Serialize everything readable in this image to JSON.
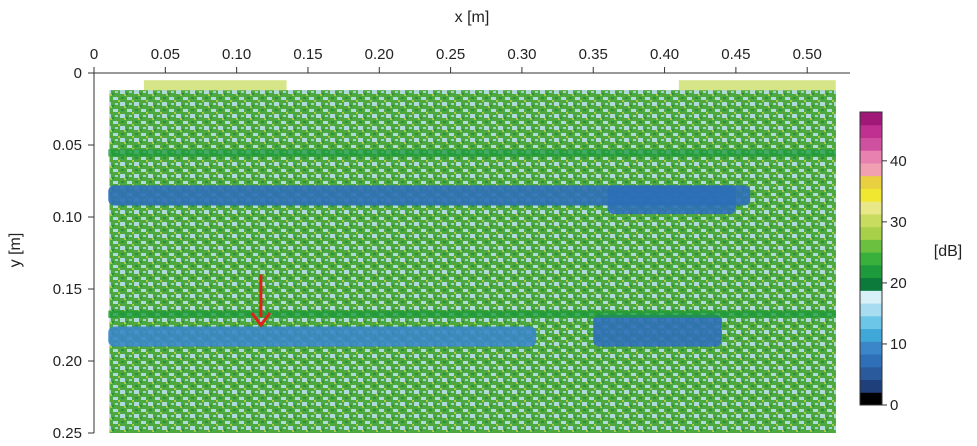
{
  "chart_data": {
    "type": "heatmap",
    "title": "",
    "xlabel": "x [m]",
    "ylabel": "y [m]",
    "xlim": [
      0,
      0.53
    ],
    "ylim": [
      0.25,
      0
    ],
    "x_ticks": [
      "0",
      "0.05",
      "0.10",
      "0.15",
      "0.20",
      "0.25",
      "0.30",
      "0.35",
      "0.40",
      "0.45",
      "0.50"
    ],
    "x_tick_values": [
      0,
      0.05,
      0.1,
      0.15,
      0.2,
      0.25,
      0.3,
      0.35,
      0.4,
      0.45,
      0.5
    ],
    "y_ticks": [
      "0",
      "0.05",
      "0.10",
      "0.15",
      "0.20",
      "0.25"
    ],
    "y_tick_values": [
      0,
      0.05,
      0.1,
      0.15,
      0.2,
      0.25
    ],
    "x_axis_position": "top",
    "colorbar": {
      "label": "[dB]",
      "min": 0,
      "max": 48,
      "ticks": [
        "0",
        "10",
        "20",
        "30",
        "40"
      ],
      "tick_values": [
        0,
        10,
        20,
        30,
        40
      ],
      "colors": [
        "#000000",
        "#1f3f7a",
        "#2a5a9c",
        "#2e6fb8",
        "#3a86c8",
        "#40a8d8",
        "#6cc6e8",
        "#a8dcf0",
        "#d8f0f8",
        "#0b7a3a",
        "#1c9a3c",
        "#3ab03c",
        "#6cc040",
        "#a8d048",
        "#c8dc60",
        "#e8e888",
        "#f0e830",
        "#e8d040",
        "#f0a0b0",
        "#e880b0",
        "#d050a0",
        "#c03090",
        "#a01878"
      ]
    },
    "scan_region": {
      "x": [
        0.011,
        0.52
      ],
      "y": [
        0.012,
        0.25
      ],
      "background_level_db": 20
    },
    "features": [
      {
        "name": "upper blue band",
        "x": [
          0.01,
          0.46
        ],
        "y": [
          0.078,
          0.092
        ],
        "level_db": 8
      },
      {
        "name": "upper right blue patch",
        "x": [
          0.36,
          0.45
        ],
        "y": [
          0.078,
          0.098
        ],
        "level_db": 7
      },
      {
        "name": "lower blue band",
        "x": [
          0.01,
          0.31
        ],
        "y": [
          0.176,
          0.19
        ],
        "level_db": 10
      },
      {
        "name": "lower right blue patch",
        "x": [
          0.35,
          0.44
        ],
        "y": [
          0.168,
          0.19
        ],
        "level_db": 7
      },
      {
        "name": "green stripe",
        "x": [
          0.01,
          0.52
        ],
        "y": [
          0.053,
          0.058
        ],
        "level_db": 22
      },
      {
        "name": "green stripe",
        "x": [
          0.01,
          0.52
        ],
        "y": [
          0.165,
          0.17
        ],
        "level_db": 22
      },
      {
        "name": "top edge",
        "x": [
          0.035,
          0.135
        ],
        "y": [
          0.005,
          0.012
        ],
        "level_db": 30
      },
      {
        "name": "top edge",
        "x": [
          0.41,
          0.52
        ],
        "y": [
          0.005,
          0.012
        ],
        "level_db": 30
      }
    ],
    "annotations": [
      {
        "type": "arrow",
        "color": "#e0201a",
        "x": 0.117,
        "y_from": 0.14,
        "y_to": 0.175
      }
    ],
    "grid": false
  }
}
